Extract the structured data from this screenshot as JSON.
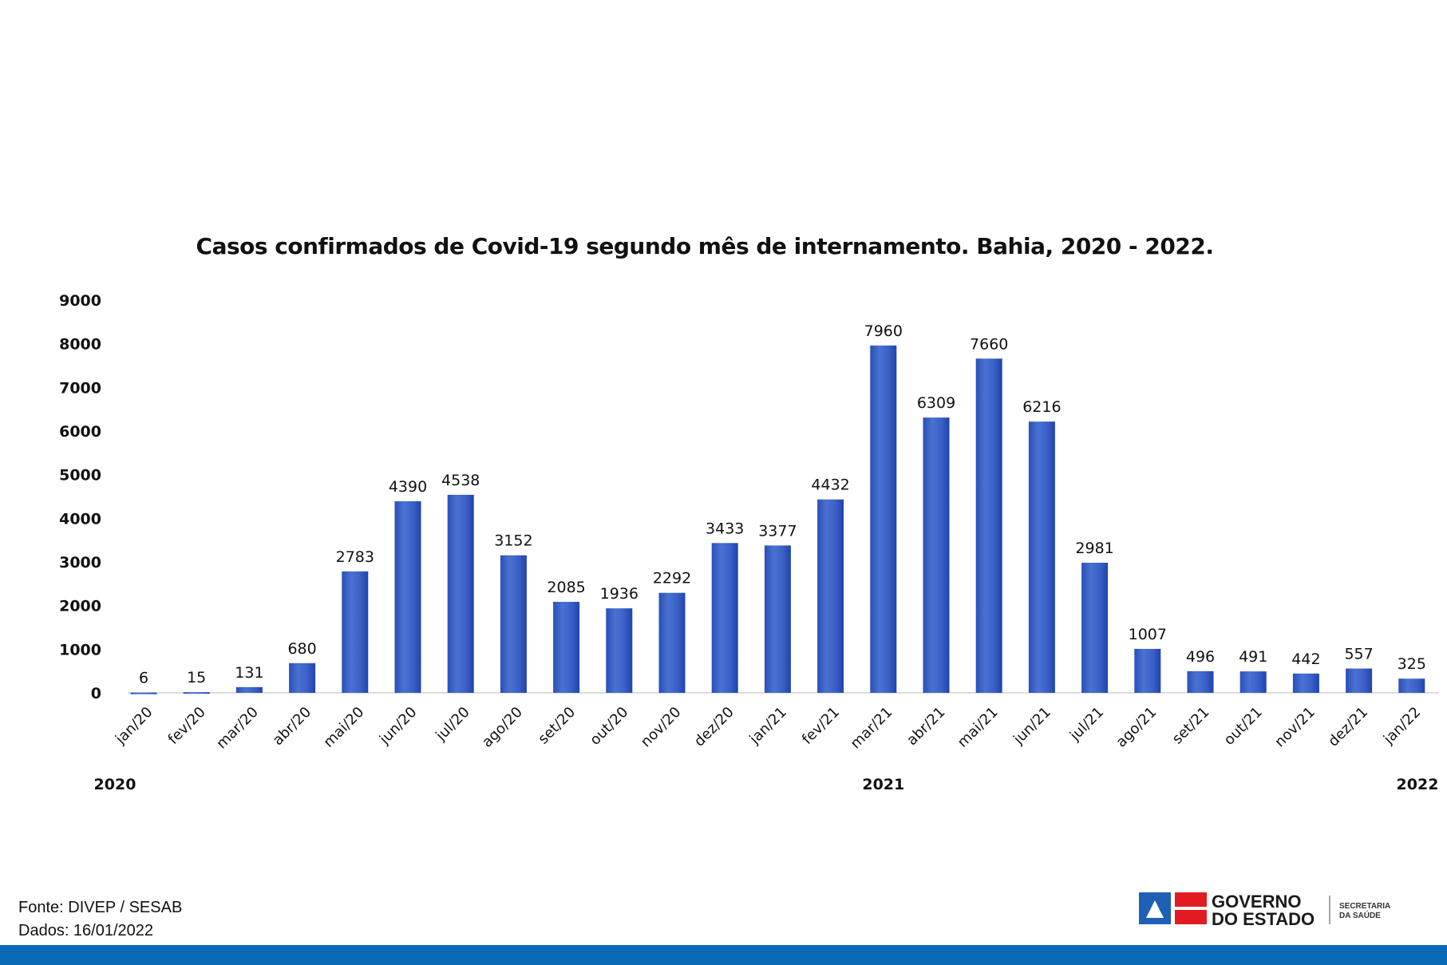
{
  "chart_data": {
    "type": "bar",
    "title": "Casos confirmados de Covid-19 segundo mês de internamento. Bahia, 2020 - 2022.",
    "xlabel": "",
    "ylabel": "",
    "ylim": [
      0,
      9000
    ],
    "yticks": [
      0,
      1000,
      2000,
      3000,
      4000,
      5000,
      6000,
      7000,
      8000,
      9000
    ],
    "grid": false,
    "categories": [
      "jan/20",
      "fev/20",
      "mar/20",
      "abr/20",
      "mai/20",
      "jun/20",
      "jul/20",
      "ago/20",
      "set/20",
      "out/20",
      "nov/20",
      "dez/20",
      "jan/21",
      "fev/21",
      "mar/21",
      "abr/21",
      "mai/21",
      "jun/21",
      "jul/21",
      "ago/21",
      "set/21",
      "out/21",
      "nov/21",
      "dez/21",
      "jan/22"
    ],
    "values": [
      6,
      15,
      131,
      680,
      2783,
      4390,
      4538,
      3152,
      2085,
      1936,
      2292,
      3433,
      3377,
      4432,
      7960,
      6309,
      7660,
      6216,
      2981,
      1007,
      496,
      491,
      442,
      557,
      325
    ],
    "year_labels": [
      {
        "label": "2020",
        "category": "jan/20"
      },
      {
        "label": "2021",
        "category": "mar/21"
      },
      {
        "label": "2022",
        "category": "jan/22"
      }
    ],
    "bar_color": "#2f56c4"
  },
  "footer": {
    "source": "Fonte: DIVEP / SESAB",
    "date": "Dados: 16/01/2022"
  },
  "logo": {
    "line1": "GOVERNO",
    "line2": "DO ESTADO",
    "sub1": "SECRETARIA",
    "sub2": "DA SAÚDE"
  },
  "colors": {
    "band": "#0a69b4",
    "flag_blue": "#1f5fb5",
    "flag_red": "#e21b23"
  }
}
